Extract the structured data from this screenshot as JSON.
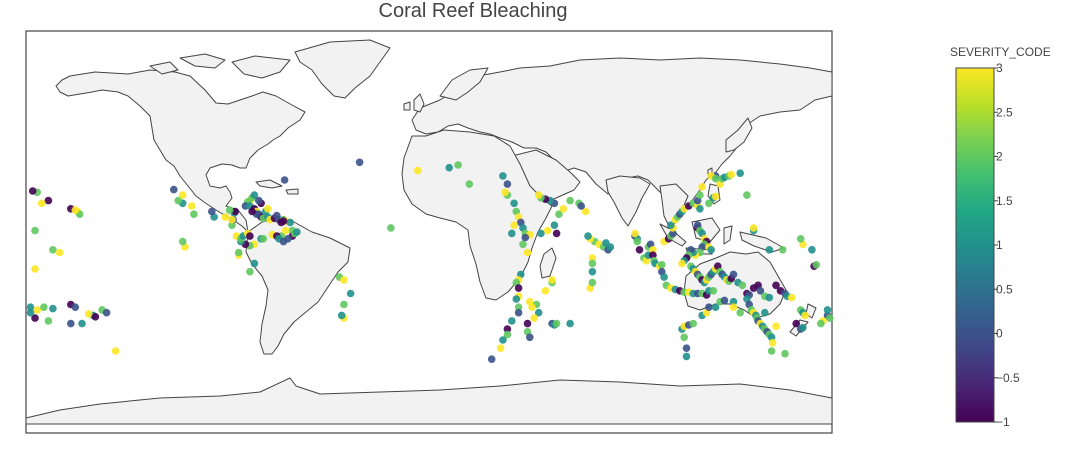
{
  "title": "Coral Reef Bleaching",
  "chart_data": {
    "type": "scatter",
    "projection": "equirectangular",
    "title": "Coral Reef Bleaching",
    "colorbar": {
      "title": "SEVERITY_CODE",
      "range": [
        -1,
        3
      ],
      "ticks": [
        -1,
        -0.5,
        0,
        0.5,
        1,
        1.5,
        2,
        2.5,
        3
      ],
      "tick_labels": [
        "−1",
        "−0.5",
        "0",
        "0.5",
        "1",
        "1.5",
        "2",
        "2.5",
        "3"
      ],
      "colorscale": "viridis"
    },
    "land_color": "#f2f2f2",
    "coast_color": "#444444",
    "points": [
      [
        -80,
        25,
        3
      ],
      [
        -81,
        24.5,
        2
      ],
      [
        -82,
        23,
        0
      ],
      [
        -80,
        23,
        1
      ],
      [
        -78,
        22,
        -1
      ],
      [
        -77,
        21,
        3
      ],
      [
        -76,
        20,
        0
      ],
      [
        -75,
        19,
        -1
      ],
      [
        -74,
        18.5,
        2
      ],
      [
        -72,
        19,
        1
      ],
      [
        -71,
        18,
        3
      ],
      [
        -69,
        18.5,
        -1
      ],
      [
        -67,
        18,
        0
      ],
      [
        -65,
        18,
        2
      ],
      [
        -64,
        17.5,
        3
      ],
      [
        -62,
        17,
        1
      ],
      [
        -61,
        14,
        2
      ],
      [
        -61,
        12,
        -1
      ],
      [
        -63,
        11,
        0
      ],
      [
        -66,
        12,
        2
      ],
      [
        -70,
        12.5,
        3
      ],
      [
        -68,
        12,
        -1
      ],
      [
        -75,
        11,
        1
      ],
      [
        -78,
        9,
        3
      ],
      [
        -80,
        8.5,
        2
      ],
      [
        -82,
        9,
        -1
      ],
      [
        -84,
        10,
        1
      ],
      [
        -86,
        12,
        3
      ],
      [
        -88,
        16,
        2
      ],
      [
        -87.5,
        18,
        0
      ],
      [
        -87,
        20.5,
        1
      ],
      [
        -86.5,
        21,
        -1
      ],
      [
        -89,
        21.5,
        2
      ],
      [
        -91,
        19,
        3
      ],
      [
        -96,
        19,
        1
      ],
      [
        -97,
        21,
        0
      ],
      [
        -105,
        20,
        2
      ],
      [
        -106,
        23,
        3
      ],
      [
        -110,
        24,
        1
      ],
      [
        -112,
        25,
        2
      ],
      [
        -110,
        27,
        3
      ],
      [
        -114,
        29,
        0
      ],
      [
        -109,
        8,
        3
      ],
      [
        -110,
        10,
        2
      ],
      [
        -85,
        5,
        3
      ],
      [
        -85,
        6,
        2
      ],
      [
        -78,
        2,
        1
      ],
      [
        -80,
        -1,
        2
      ],
      [
        -77,
        20,
        0
      ],
      [
        -79,
        21,
        -1
      ],
      [
        -73,
        21,
        1
      ],
      [
        -72,
        22,
        3
      ],
      [
        -68,
        19.5,
        0
      ],
      [
        -65,
        17.5,
        -1
      ],
      [
        -79,
        26,
        2
      ],
      [
        -78,
        27,
        1
      ],
      [
        -75,
        24,
        -1
      ],
      [
        -76,
        25,
        0
      ],
      [
        -88,
        18,
        3
      ],
      [
        -84,
        11,
        2
      ],
      [
        -83,
        12,
        1
      ],
      [
        -81,
        13,
        3
      ],
      [
        -80,
        12,
        -1
      ],
      [
        -74,
        11,
        2
      ],
      [
        -67,
        11,
        1
      ],
      [
        -65,
        10,
        0
      ],
      [
        -64,
        14,
        3
      ],
      [
        -60,
        13,
        2
      ],
      [
        -59,
        13.5,
        1
      ],
      [
        -66,
        17,
        -1
      ],
      [
        -40,
        -3,
        2
      ],
      [
        -38,
        -4,
        3
      ],
      [
        -35,
        -9,
        1
      ],
      [
        -38,
        -13,
        2
      ],
      [
        -38,
        -18,
        3
      ],
      [
        -39,
        -17,
        1
      ],
      [
        -64.5,
        32.5,
        0
      ],
      [
        -31,
        39,
        0
      ],
      [
        -157,
        21,
        3
      ],
      [
        -156,
        20,
        2
      ],
      [
        -160,
        22,
        -1
      ],
      [
        -158,
        21.5,
        3
      ],
      [
        -170,
        25,
        -1
      ],
      [
        -175,
        28,
        2
      ],
      [
        -177,
        28.5,
        -1
      ],
      [
        -173,
        24,
        3
      ],
      [
        -176,
        14,
        2
      ],
      [
        -168,
        7,
        2
      ],
      [
        -165,
        6,
        3
      ],
      [
        -176,
        0,
        3
      ],
      [
        -178,
        -14,
        1
      ],
      [
        -175,
        -15,
        3
      ],
      [
        -172,
        -14,
        2
      ],
      [
        -168,
        -14.5,
        1
      ],
      [
        -160,
        -13,
        -1
      ],
      [
        -158,
        -14,
        0
      ],
      [
        -150,
        -17,
        1
      ],
      [
        -152,
        -16.5,
        3
      ],
      [
        -149,
        -17.5,
        -1
      ],
      [
        -146,
        -15,
        2
      ],
      [
        -144,
        -16,
        0
      ],
      [
        -155,
        -20,
        1
      ],
      [
        -160,
        -20,
        0
      ],
      [
        -140,
        -30,
        3
      ],
      [
        -170,
        -19,
        2
      ],
      [
        -176,
        -18,
        -1
      ],
      [
        -178,
        -16,
        1
      ],
      [
        35,
        27,
        2
      ],
      [
        34,
        28,
        3
      ],
      [
        38,
        24,
        1
      ],
      [
        39,
        21,
        2
      ],
      [
        40,
        19,
        3
      ],
      [
        41,
        17,
        0
      ],
      [
        42,
        15,
        1
      ],
      [
        43,
        13,
        2
      ],
      [
        45,
        12.5,
        3
      ],
      [
        50,
        13,
        1
      ],
      [
        53,
        14,
        3
      ],
      [
        57,
        13,
        -1
      ],
      [
        56,
        16,
        1
      ],
      [
        58,
        20,
        2
      ],
      [
        60,
        22,
        3
      ],
      [
        56,
        24,
        0
      ],
      [
        54,
        25,
        1
      ],
      [
        52,
        25.5,
        -1
      ],
      [
        50,
        26,
        2
      ],
      [
        49,
        27,
        3
      ],
      [
        35,
        31,
        0
      ],
      [
        33,
        34,
        1
      ],
      [
        37,
        13,
        1
      ],
      [
        38,
        16,
        3
      ],
      [
        42,
        9,
        2
      ],
      [
        43,
        11.5,
        0
      ],
      [
        44,
        6,
        3
      ],
      [
        41,
        -2,
        1
      ],
      [
        40,
        -4,
        3
      ],
      [
        39,
        -5,
        2
      ],
      [
        40,
        -7,
        -1
      ],
      [
        40,
        -10,
        3
      ],
      [
        39,
        -11,
        1
      ],
      [
        40,
        -14,
        2
      ],
      [
        40,
        -16,
        0
      ],
      [
        37,
        -19,
        1
      ],
      [
        35,
        -22,
        -1
      ],
      [
        35,
        -24,
        2
      ],
      [
        33,
        -26,
        1
      ],
      [
        32,
        -29,
        3
      ],
      [
        28,
        -33,
        0
      ],
      [
        45,
        -12,
        3
      ],
      [
        48,
        -13,
        2
      ],
      [
        49,
        -16,
        1
      ],
      [
        47,
        -18,
        3
      ],
      [
        44,
        -20,
        -1
      ],
      [
        44,
        -23,
        2
      ],
      [
        45,
        -25,
        0
      ],
      [
        46,
        -14,
        3
      ],
      [
        55,
        -20,
        0
      ],
      [
        56,
        -20.5,
        1
      ],
      [
        57,
        -20,
        2
      ],
      [
        63,
        -20,
        1
      ],
      [
        55,
        -5,
        2
      ],
      [
        55,
        -4,
        3
      ],
      [
        73,
        4,
        3
      ],
      [
        73,
        2,
        2
      ],
      [
        73,
        -1,
        1
      ],
      [
        72,
        -7,
        3
      ],
      [
        73,
        -5,
        2
      ],
      [
        74,
        10,
        2
      ],
      [
        72,
        11,
        3
      ],
      [
        71,
        12,
        1
      ],
      [
        76,
        9,
        3
      ],
      [
        78,
        8,
        2
      ],
      [
        79,
        9.5,
        1
      ],
      [
        80,
        7,
        0
      ],
      [
        81,
        8,
        1
      ],
      [
        67,
        24,
        2
      ],
      [
        70,
        21,
        3
      ],
      [
        68,
        23,
        0
      ],
      [
        63,
        25,
        2
      ],
      [
        52,
        -8,
        3
      ],
      [
        92,
        12,
        0
      ],
      [
        93,
        11,
        1
      ],
      [
        92,
        13,
        3
      ],
      [
        93,
        10,
        2
      ],
      [
        94,
        7,
        -1
      ],
      [
        96,
        4,
        2
      ],
      [
        97,
        3,
        3
      ],
      [
        98,
        5,
        1
      ],
      [
        98,
        8,
        2
      ],
      [
        99,
        9,
        0
      ],
      [
        100,
        7,
        3
      ],
      [
        100,
        5,
        -1
      ],
      [
        100.5,
        3,
        2
      ],
      [
        101,
        2,
        1
      ],
      [
        103,
        1,
        3
      ],
      [
        104,
        1.5,
        2
      ],
      [
        104,
        -1,
        0
      ],
      [
        105,
        -3,
        1
      ],
      [
        106,
        -6,
        2
      ],
      [
        108,
        -7,
        3
      ],
      [
        110,
        -7.5,
        1
      ],
      [
        112,
        -8,
        -1
      ],
      [
        114,
        -8.5,
        2
      ],
      [
        116,
        -8.5,
        3
      ],
      [
        118,
        -9,
        1
      ],
      [
        120,
        -9,
        0
      ],
      [
        122,
        -9,
        2
      ],
      [
        124,
        -9.5,
        -1
      ],
      [
        125,
        -8,
        1
      ],
      [
        127,
        -8,
        2
      ],
      [
        105,
        10,
        3
      ],
      [
        107,
        11,
        -1
      ],
      [
        108,
        12,
        2
      ],
      [
        109,
        13,
        0
      ],
      [
        109,
        15,
        3
      ],
      [
        108,
        16,
        1
      ],
      [
        110,
        18,
        3
      ],
      [
        111,
        19,
        2
      ],
      [
        112,
        20,
        0
      ],
      [
        113,
        21,
        1
      ],
      [
        114,
        22,
        3
      ],
      [
        116,
        23,
        -1
      ],
      [
        118,
        24,
        2
      ],
      [
        120,
        23,
        3
      ],
      [
        121,
        22,
        1
      ],
      [
        120,
        25,
        0
      ],
      [
        121,
        27,
        2
      ],
      [
        122,
        30,
        3
      ],
      [
        125,
        24,
        2
      ],
      [
        127,
        26,
        1
      ],
      [
        128,
        26.5,
        3
      ],
      [
        130,
        31,
        3
      ],
      [
        131,
        33,
        2
      ],
      [
        132,
        33.5,
        1
      ],
      [
        134,
        34,
        2
      ],
      [
        135,
        34.5,
        3
      ],
      [
        128,
        34,
        0
      ],
      [
        126,
        34,
        3
      ],
      [
        128,
        33,
        2
      ],
      [
        139,
        35,
        1
      ],
      [
        142,
        27,
        2
      ],
      [
        145,
        14,
        1
      ],
      [
        145,
        15,
        3
      ],
      [
        152,
        7,
        1
      ],
      [
        158,
        7,
        2
      ],
      [
        167,
        9,
        3
      ],
      [
        166,
        11,
        2
      ],
      [
        171,
        7,
        1
      ],
      [
        172,
        1,
        -1
      ],
      [
        173,
        1.5,
        2
      ],
      [
        120,
        15,
        -1
      ],
      [
        120,
        16,
        0
      ],
      [
        121,
        14,
        2
      ],
      [
        122,
        13,
        1
      ],
      [
        123,
        11,
        3
      ],
      [
        124,
        10,
        -1
      ],
      [
        123,
        9,
        2
      ],
      [
        122,
        8,
        0
      ],
      [
        125,
        8,
        3
      ],
      [
        126,
        7,
        1
      ],
      [
        121,
        6,
        2
      ],
      [
        119,
        5,
        3
      ],
      [
        118,
        6,
        1
      ],
      [
        117,
        7,
        0
      ],
      [
        116,
        5,
        2
      ],
      [
        115,
        4,
        -1
      ],
      [
        114,
        3,
        1
      ],
      [
        113,
        2,
        3
      ],
      [
        117,
        1,
        2
      ],
      [
        118,
        0,
        1
      ],
      [
        119,
        -1,
        3
      ],
      [
        120,
        -2,
        0
      ],
      [
        121,
        -3,
        2
      ],
      [
        122,
        -4,
        -1
      ],
      [
        123,
        -5,
        1
      ],
      [
        124,
        -4,
        3
      ],
      [
        125,
        -3,
        2
      ],
      [
        126,
        -2,
        0
      ],
      [
        127,
        -1,
        1
      ],
      [
        128,
        0,
        3
      ],
      [
        129,
        1,
        -1
      ],
      [
        130,
        -1,
        2
      ],
      [
        131,
        -2,
        0
      ],
      [
        132,
        -3,
        1
      ],
      [
        133,
        -4,
        3
      ],
      [
        134,
        -4.5,
        2
      ],
      [
        135,
        -3.5,
        -1
      ],
      [
        136,
        -2,
        0
      ],
      [
        138,
        -5,
        1
      ],
      [
        140,
        -6,
        2
      ],
      [
        142,
        -9,
        -1
      ],
      [
        143,
        -9.5,
        0
      ],
      [
        145,
        -7,
        -1
      ],
      [
        147,
        -6,
        -1
      ],
      [
        148,
        -8,
        0
      ],
      [
        150,
        -10,
        2
      ],
      [
        152,
        -10.5,
        1
      ],
      [
        155,
        -6,
        -1
      ],
      [
        157,
        -8,
        -1
      ],
      [
        159,
        -9,
        0
      ],
      [
        160,
        -10,
        1
      ],
      [
        162,
        -10.5,
        3
      ],
      [
        166,
        -15,
        2
      ],
      [
        167,
        -16,
        1
      ],
      [
        168,
        -17,
        3
      ],
      [
        178,
        -17,
        0
      ],
      [
        179,
        -18,
        2
      ],
      [
        180,
        -16,
        -1
      ],
      [
        178,
        -15,
        1
      ],
      [
        176,
        -19,
        3
      ],
      [
        175,
        -20,
        2
      ],
      [
        164,
        -20,
        -1
      ],
      [
        166,
        -22,
        0
      ],
      [
        167,
        -21.5,
        1
      ],
      [
        113,
        -22,
        1
      ],
      [
        114,
        -25,
        2
      ],
      [
        115,
        -29,
        0
      ],
      [
        115,
        -32,
        1
      ],
      [
        114,
        -21,
        3
      ],
      [
        116,
        -20.5,
        0
      ],
      [
        118,
        -20,
        2
      ],
      [
        122,
        -17,
        1
      ],
      [
        124,
        -16,
        3
      ],
      [
        125,
        -14,
        0
      ],
      [
        128,
        -14,
        1
      ],
      [
        130,
        -12,
        2
      ],
      [
        132,
        -11.5,
        0
      ],
      [
        136,
        -12,
        1
      ],
      [
        136,
        -14,
        3
      ],
      [
        139,
        -16,
        2
      ],
      [
        142,
        -11,
        1
      ],
      [
        143,
        -13,
        0
      ],
      [
        144,
        -15,
        2
      ],
      [
        145,
        -16,
        3
      ],
      [
        146,
        -17,
        1
      ],
      [
        146.5,
        -18,
        2
      ],
      [
        147,
        -19,
        0
      ],
      [
        148,
        -20,
        3
      ],
      [
        149,
        -21,
        1
      ],
      [
        150,
        -22,
        2
      ],
      [
        151,
        -23,
        0
      ],
      [
        152,
        -24,
        2
      ],
      [
        153,
        -25,
        1
      ],
      [
        153.5,
        -27,
        3
      ],
      [
        153,
        -30,
        2
      ],
      [
        150,
        -16,
        1
      ],
      [
        155,
        -21,
        3
      ],
      [
        159,
        -31,
        2
      ],
      [
        -5,
        36,
        3
      ],
      [
        13,
        38,
        2
      ],
      [
        18,
        31,
        2
      ],
      [
        9,
        37,
        1
      ],
      [
        -17,
        15,
        2
      ]
    ]
  }
}
